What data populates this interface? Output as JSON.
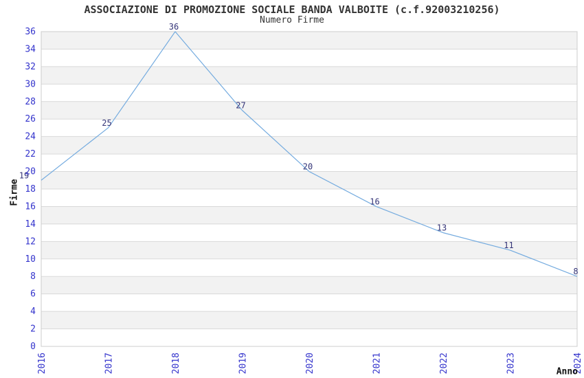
{
  "chart_data": {
    "type": "line",
    "title": "ASSOCIAZIONE DI PROMOZIONE SOCIALE BANDA VALBOITE (c.f.92003210256)",
    "subtitle": "Numero Firme",
    "xlabel": "Anno",
    "ylabel": "Firme",
    "categories": [
      "2016",
      "2017",
      "2018",
      "2019",
      "2020",
      "2021",
      "2022",
      "2023",
      "2024"
    ],
    "series": [
      {
        "name": "Numero Firme",
        "values": [
          19,
          25,
          36,
          27,
          20,
          16,
          13,
          11,
          8
        ]
      }
    ],
    "point_labels": [
      "19",
      "25",
      "36",
      "27",
      "20",
      "16",
      "13",
      "11",
      "8"
    ],
    "ylim": [
      0,
      36
    ],
    "ytick_step": 2,
    "grid": true,
    "legend_position": "none",
    "colors": {
      "line": "#74abdf",
      "tick_label": "#3333cc",
      "data_label": "#333377",
      "band_fill": "#f2f2f2",
      "gridline": "#d9d9d9",
      "plot_border": "#cccccc",
      "title_text": "#333333",
      "axis_title_text": "#111111",
      "background": "#ffffff"
    }
  }
}
